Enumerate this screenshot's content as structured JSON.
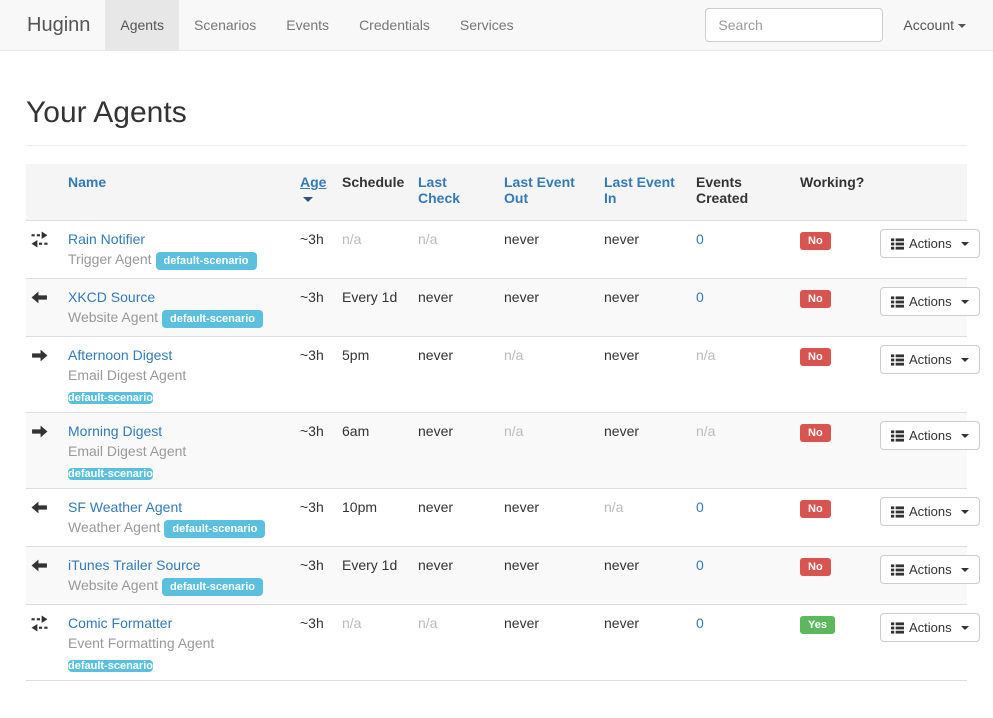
{
  "nav": {
    "brand": "Huginn",
    "items": [
      {
        "label": "Agents",
        "active": true
      },
      {
        "label": "Scenarios",
        "active": false
      },
      {
        "label": "Events",
        "active": false
      },
      {
        "label": "Credentials",
        "active": false
      },
      {
        "label": "Services",
        "active": false
      }
    ],
    "search_placeholder": "Search",
    "account_label": "Account"
  },
  "page": {
    "title": "Your Agents"
  },
  "table": {
    "headers": {
      "name": "Name",
      "age": "Age",
      "schedule": "Schedule",
      "last_check": "Last Check",
      "last_event_out": "Last Event Out",
      "last_event_in": "Last Event In",
      "events_created": "Events Created",
      "working": "Working?"
    },
    "actions_label": "Actions",
    "rows": [
      {
        "icon": "transfer-icon",
        "name": "Rain Notifier",
        "type": "Trigger Agent",
        "badge": "default-scenario",
        "badge_position": "inline",
        "age": {
          "text": "~3h"
        },
        "schedule": {
          "text": "n/a",
          "muted": true
        },
        "last_check": {
          "text": "n/a",
          "muted": true
        },
        "last_event_out": {
          "text": "never"
        },
        "last_event_in": {
          "text": "never"
        },
        "events_created": {
          "text": "0",
          "link": true
        },
        "working": {
          "text": "No",
          "status": "no"
        }
      },
      {
        "icon": "arrow-left-icon",
        "name": "XKCD Source",
        "type": "Website Agent",
        "badge": "default-scenario",
        "badge_position": "inline",
        "age": {
          "text": "~3h"
        },
        "schedule": {
          "text": "Every 1d"
        },
        "last_check": {
          "text": "never"
        },
        "last_event_out": {
          "text": "never"
        },
        "last_event_in": {
          "text": "never"
        },
        "events_created": {
          "text": "0",
          "link": true
        },
        "working": {
          "text": "No",
          "status": "no"
        }
      },
      {
        "icon": "arrow-right-icon",
        "name": "Afternoon Digest",
        "type": "Email Digest Agent",
        "badge": "default-scenario",
        "badge_position": "block",
        "age": {
          "text": "~3h"
        },
        "schedule": {
          "text": "5pm"
        },
        "last_check": {
          "text": "never"
        },
        "last_event_out": {
          "text": "n/a",
          "muted": true
        },
        "last_event_in": {
          "text": "never"
        },
        "events_created": {
          "text": "n/a",
          "muted": true
        },
        "working": {
          "text": "No",
          "status": "no"
        }
      },
      {
        "icon": "arrow-right-icon",
        "name": "Morning Digest",
        "type": "Email Digest Agent",
        "badge": "default-scenario",
        "badge_position": "block",
        "age": {
          "text": "~3h"
        },
        "schedule": {
          "text": "6am"
        },
        "last_check": {
          "text": "never"
        },
        "last_event_out": {
          "text": "n/a",
          "muted": true
        },
        "last_event_in": {
          "text": "never"
        },
        "events_created": {
          "text": "n/a",
          "muted": true
        },
        "working": {
          "text": "No",
          "status": "no"
        }
      },
      {
        "icon": "arrow-left-icon",
        "name": "SF Weather Agent",
        "type": "Weather Agent",
        "badge": "default-scenario",
        "badge_position": "inline",
        "age": {
          "text": "~3h"
        },
        "schedule": {
          "text": "10pm"
        },
        "last_check": {
          "text": "never"
        },
        "last_event_out": {
          "text": "never"
        },
        "last_event_in": {
          "text": "n/a",
          "muted": true
        },
        "events_created": {
          "text": "0",
          "link": true
        },
        "working": {
          "text": "No",
          "status": "no"
        }
      },
      {
        "icon": "arrow-left-icon",
        "name": "iTunes Trailer Source",
        "type": "Website Agent",
        "badge": "default-scenario",
        "badge_position": "inline",
        "age": {
          "text": "~3h"
        },
        "schedule": {
          "text": "Every 1d"
        },
        "last_check": {
          "text": "never"
        },
        "last_event_out": {
          "text": "never"
        },
        "last_event_in": {
          "text": "never"
        },
        "events_created": {
          "text": "0",
          "link": true
        },
        "working": {
          "text": "No",
          "status": "no"
        }
      },
      {
        "icon": "transfer-icon",
        "name": "Comic Formatter",
        "type": "Event Formatting Agent",
        "badge": "default-scenario",
        "badge_position": "block",
        "age": {
          "text": "~3h"
        },
        "schedule": {
          "text": "n/a",
          "muted": true
        },
        "last_check": {
          "text": "n/a",
          "muted": true
        },
        "last_event_out": {
          "text": "never"
        },
        "last_event_in": {
          "text": "never"
        },
        "events_created": {
          "text": "0",
          "link": true
        },
        "working": {
          "text": "Yes",
          "status": "yes"
        }
      }
    ]
  },
  "colors": {
    "link": "#337ab7",
    "badge_info": "#5bc0de",
    "status_no": "#d9534f",
    "status_yes": "#5cb85c",
    "navbar_bg": "#f8f8f8",
    "stripe": "#f9f9f9"
  }
}
